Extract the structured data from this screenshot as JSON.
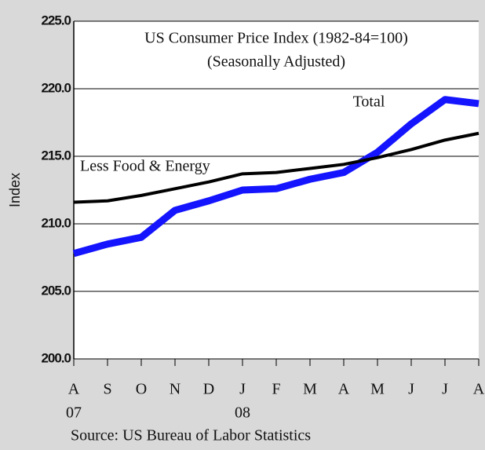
{
  "chart_data": {
    "type": "line",
    "title": "US Consumer Price Index (1982-84=100)",
    "subtitle": "(Seasonally Adjusted)",
    "y_label": "Index",
    "source": "Source: US Bureau of Labor Statistics",
    "categories": [
      "A",
      "S",
      "O",
      "N",
      "D",
      "J",
      "F",
      "M",
      "A",
      "M",
      "J",
      "J",
      "A"
    ],
    "category_years": [
      "07",
      null,
      null,
      null,
      null,
      "08",
      null,
      null,
      null,
      null,
      null,
      null,
      null
    ],
    "series": [
      {
        "name": "Total",
        "color": "#1414ff",
        "width": 9,
        "values": [
          207.8,
          208.5,
          209.0,
          211.0,
          211.7,
          212.5,
          212.6,
          213.3,
          213.8,
          215.3,
          217.4,
          219.2,
          218.9
        ]
      },
      {
        "name": "Less Food & Energy",
        "color": "#000000",
        "width": 4,
        "values": [
          211.6,
          211.7,
          212.1,
          212.6,
          213.1,
          213.7,
          213.8,
          214.1,
          214.4,
          214.9,
          215.5,
          216.2,
          216.7
        ]
      }
    ],
    "ylim": [
      200,
      225
    ],
    "yticks": [
      {
        "value": 200,
        "label": "200.0"
      },
      {
        "value": 205,
        "label": "205.0"
      },
      {
        "value": 210,
        "label": "210.0"
      },
      {
        "value": 215,
        "label": "215.0"
      },
      {
        "value": 220,
        "label": "220.0"
      },
      {
        "value": 225,
        "label": "225.0"
      }
    ],
    "grid": true
  }
}
